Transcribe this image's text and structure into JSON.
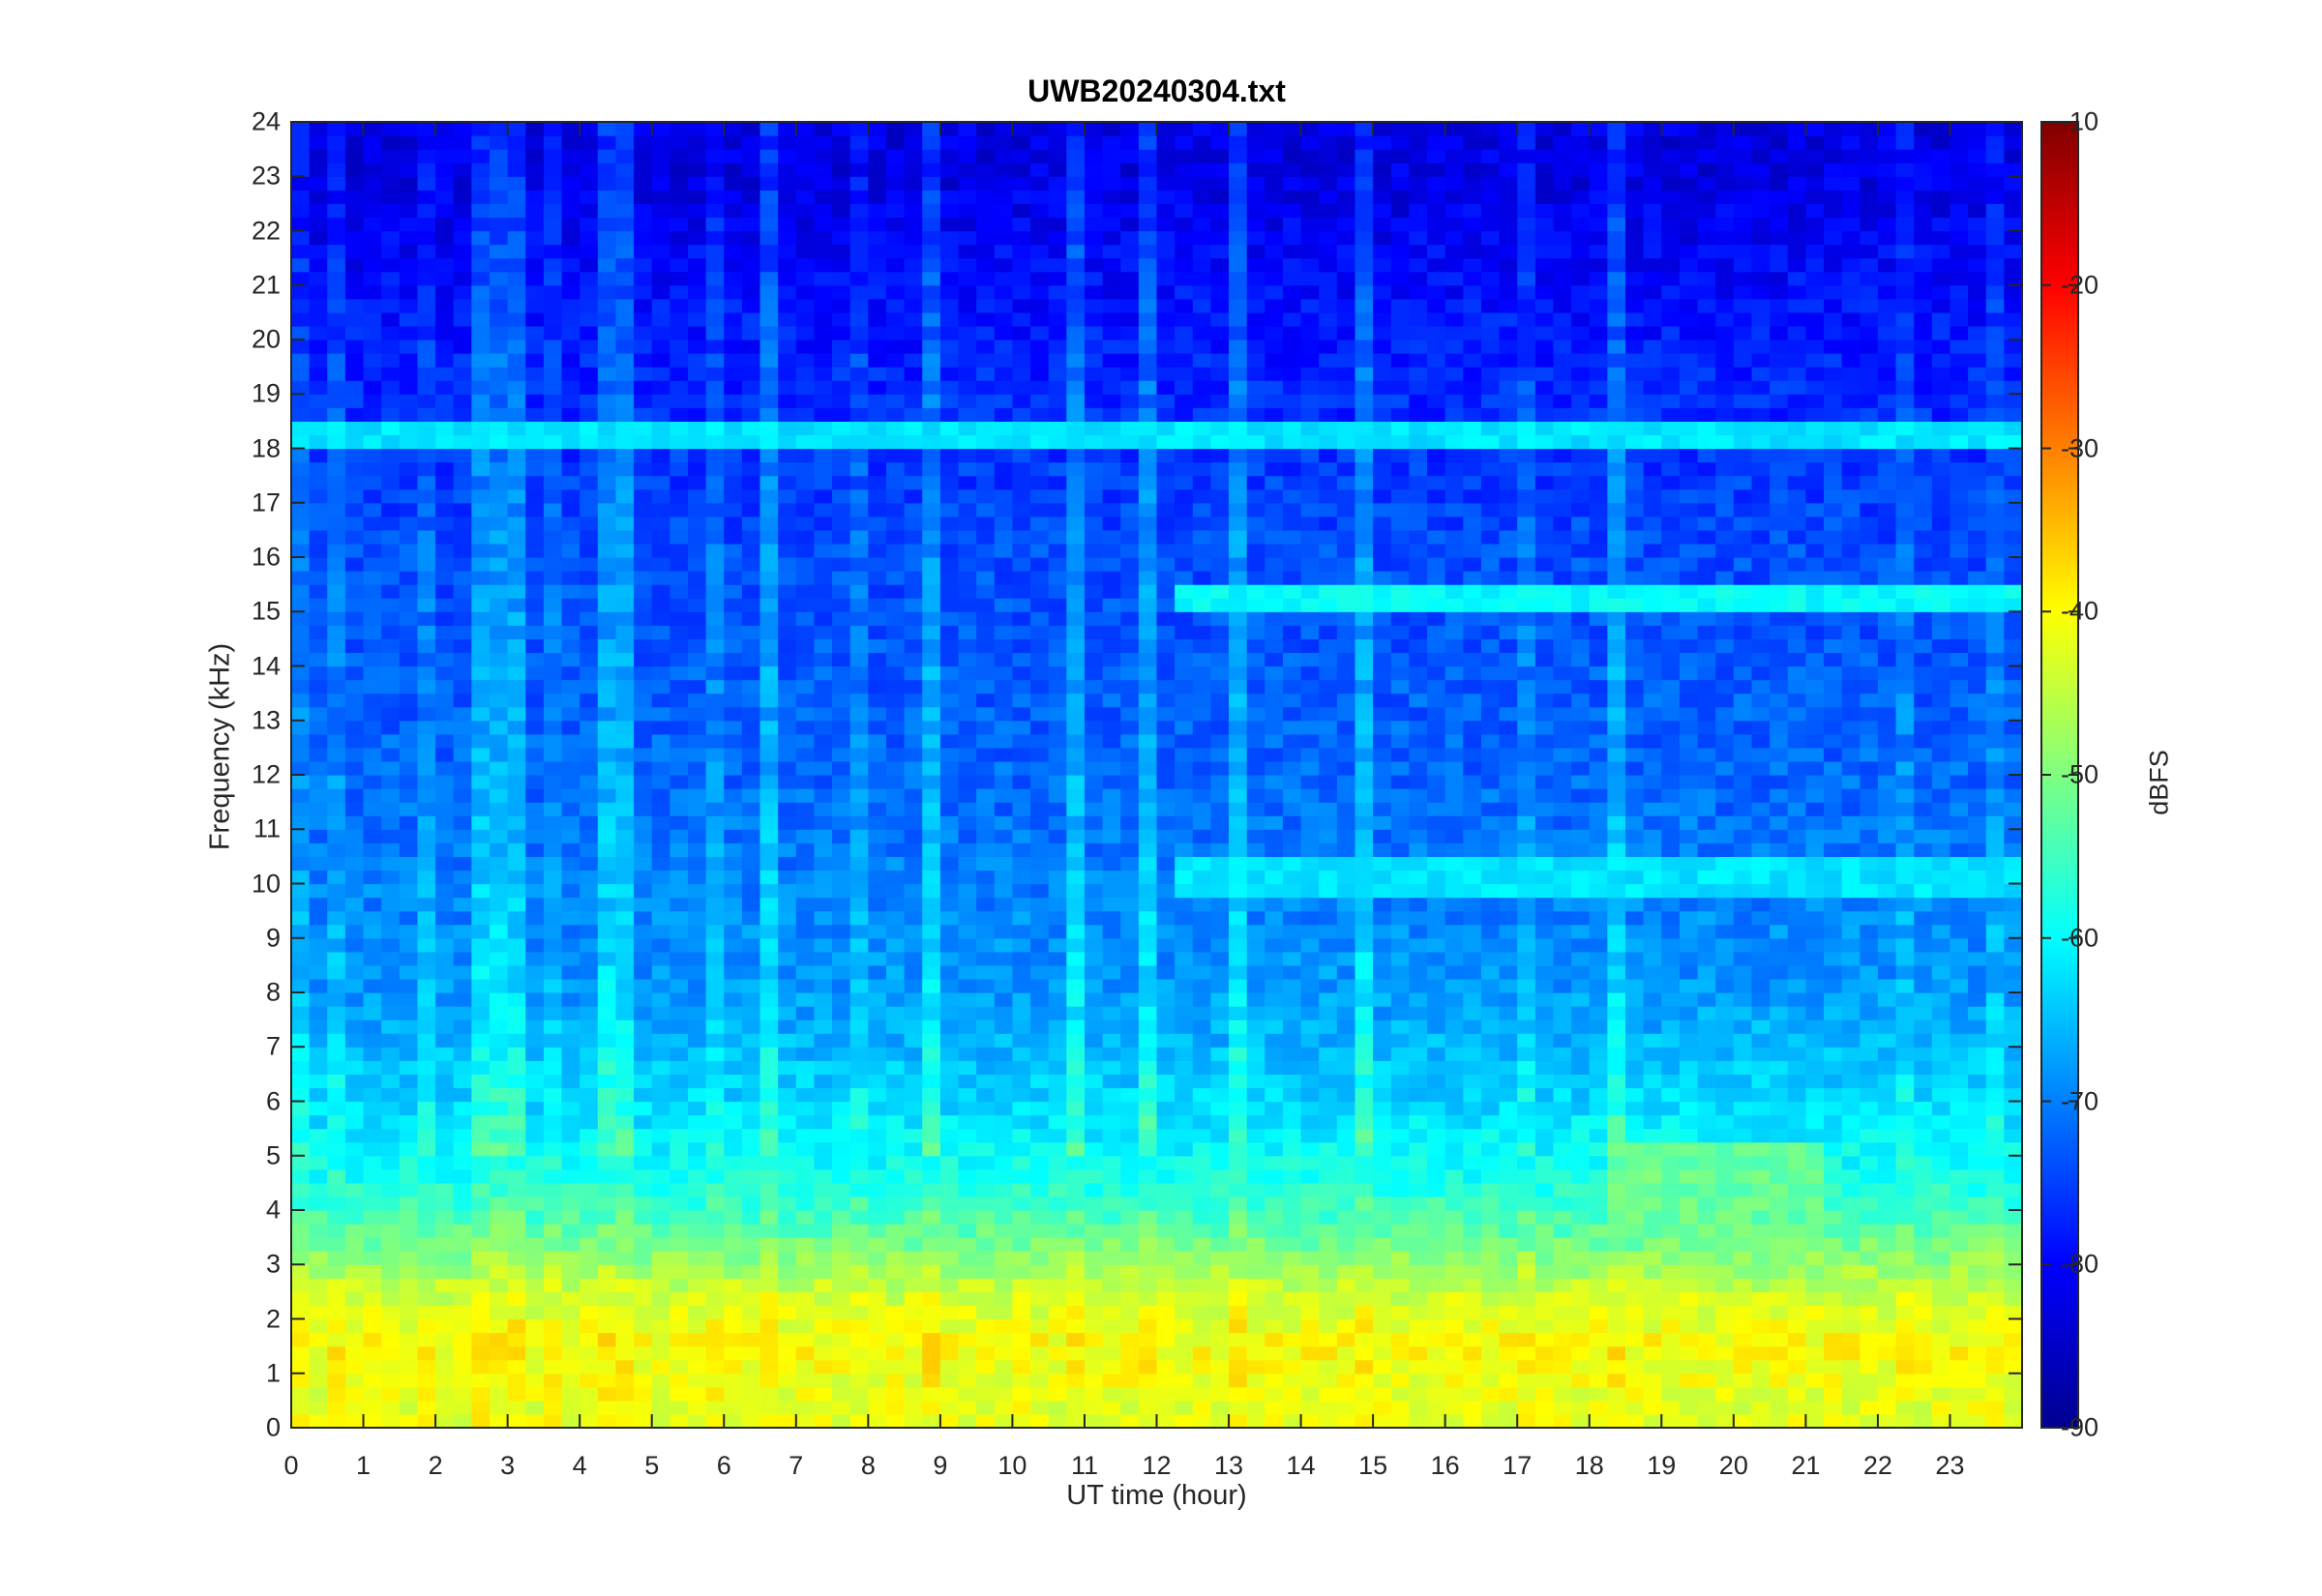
{
  "chart_data": {
    "type": "heatmap",
    "title": "UWB20240304.txt",
    "xlabel": "UT time (hour)",
    "ylabel": "Frequency (kHz)",
    "xlim": [
      0,
      24
    ],
    "ylim": [
      0,
      24
    ],
    "x_ticks": [
      "0",
      "1",
      "2",
      "3",
      "4",
      "5",
      "6",
      "7",
      "8",
      "9",
      "10",
      "11",
      "12",
      "13",
      "14",
      "15",
      "16",
      "17",
      "18",
      "19",
      "20",
      "21",
      "22",
      "23"
    ],
    "y_ticks": [
      "0",
      "1",
      "2",
      "3",
      "4",
      "5",
      "6",
      "7",
      "8",
      "9",
      "10",
      "11",
      "12",
      "13",
      "14",
      "15",
      "16",
      "17",
      "18",
      "19",
      "20",
      "21",
      "22",
      "23",
      "24"
    ],
    "colorbar": {
      "label": "dBFS",
      "range": [
        -90,
        -10
      ],
      "ticks": [
        "-10",
        "-20",
        "-30",
        "-40",
        "-50",
        "-60",
        "-70",
        "-80",
        "-90"
      ],
      "colormap": "jet"
    },
    "level_profile_dBFS": [
      {
        "freq_khz": 0.5,
        "level": -42
      },
      {
        "freq_khz": 1.5,
        "level": -40
      },
      {
        "freq_khz": 2.5,
        "level": -44
      },
      {
        "freq_khz": 3.5,
        "level": -52
      },
      {
        "freq_khz": 4.5,
        "level": -58
      },
      {
        "freq_khz": 6,
        "level": -63
      },
      {
        "freq_khz": 8,
        "level": -68
      },
      {
        "freq_khz": 12,
        "level": -72
      },
      {
        "freq_khz": 16,
        "level": -74
      },
      {
        "freq_khz": 20,
        "level": -78
      },
      {
        "freq_khz": 23,
        "level": -82
      }
    ],
    "features": [
      {
        "type": "band",
        "freq_khz": 18.3,
        "level": -62
      },
      {
        "type": "band",
        "freq_khz": 15.2,
        "start_hour": 12.2,
        "end_hour": 24,
        "level": -60
      },
      {
        "type": "band",
        "freq_khz": 10.1,
        "start_hour": 12.2,
        "end_hour": 24,
        "level": -62
      },
      {
        "type": "region",
        "freq_khz_range": [
          3.5,
          5.3
        ],
        "hour_range": [
          18.2,
          21.2
        ],
        "level": -52
      }
    ]
  }
}
